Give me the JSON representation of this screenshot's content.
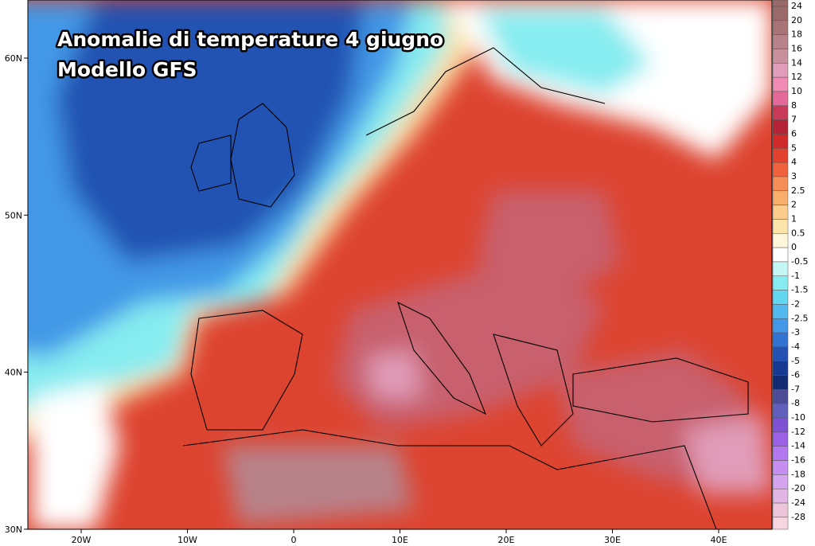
{
  "title": [
    "Anomalie di temperature 4 giugno",
    "Modello GFS"
  ],
  "lat_labels": [
    "60N",
    "50N",
    "40N",
    "30N"
  ],
  "lon_labels": [
    "20W",
    "10W",
    "0",
    "10E",
    "20E",
    "30E",
    "40E"
  ],
  "legend": {
    "labels": [
      "24",
      "20",
      "18",
      "16",
      "14",
      "12",
      "10",
      "8",
      "7",
      "6",
      "5",
      "4",
      "3",
      "2.5",
      "2",
      "1",
      "0.5",
      "0",
      "-0.5",
      "-1",
      "-1.5",
      "-2",
      "-2.5",
      "-3",
      "-4",
      "-5",
      "-6",
      "-7",
      "-8",
      "-10",
      "-12",
      "-14",
      "-16",
      "-18",
      "-20",
      "-24",
      "-28"
    ],
    "colors": [
      "#9a6a6a",
      "#a87478",
      "#b8828a",
      "#c8909c",
      "#e09cb8",
      "#f08cb4",
      "#e46898",
      "#c83a58",
      "#b42436",
      "#d02a2a",
      "#e2422e",
      "#f0623e",
      "#f68e58",
      "#f9ae6c",
      "#fbcc8c",
      "#fde4aa",
      "#fff6dc",
      "#ffffff",
      "#c4f6f6",
      "#86ecf0",
      "#64d6f0",
      "#52b8ee",
      "#4298e6",
      "#3272d0",
      "#2452b2",
      "#163a92",
      "#122a72",
      "#4c4c96",
      "#6060bc",
      "#7e52d2",
      "#9c60e6",
      "#b478ee",
      "#c68ef0",
      "#d4a4ee",
      "#e2b6e4",
      "#ecc6d8",
      "#f6d6e0"
    ]
  }
}
